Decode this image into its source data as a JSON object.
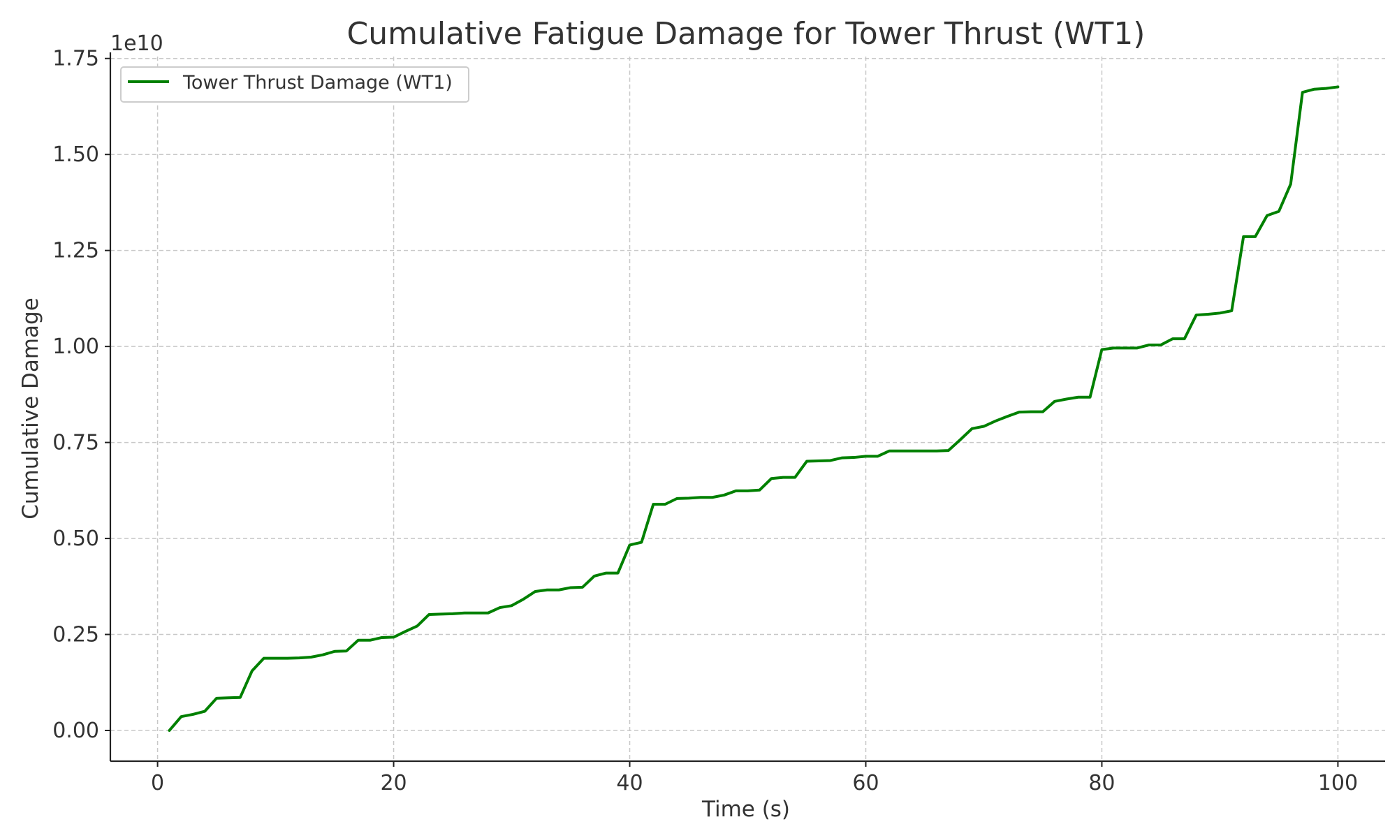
{
  "chart_data": {
    "type": "line",
    "title": "Cumulative Fatigue Damage for Tower Thrust (WT1)",
    "xlabel": "Time (s)",
    "ylabel": "Cumulative Damage",
    "y_offset_label": "1e10",
    "y_scale_factor": 10000000000,
    "xlim": [
      -4,
      104
    ],
    "ylim": [
      -0.08,
      1.755
    ],
    "x_ticks": [
      0,
      20,
      40,
      60,
      80,
      100
    ],
    "y_ticks": [
      0.0,
      0.25,
      0.5,
      0.75,
      1.0,
      1.25,
      1.5,
      1.75
    ],
    "x_tick_labels": [
      "0",
      "20",
      "40",
      "60",
      "80",
      "100"
    ],
    "y_tick_labels": [
      "0.00",
      "0.25",
      "0.50",
      "0.75",
      "1.00",
      "1.25",
      "1.50",
      "1.75"
    ],
    "grid": true,
    "legend_position": "top-left",
    "series": [
      {
        "name": "Tower Thrust Damage (WT1)",
        "color": "#008000",
        "x": [
          1,
          2,
          3,
          4,
          5,
          6,
          7,
          8,
          9,
          10,
          11,
          12,
          13,
          14,
          15,
          16,
          17,
          18,
          19,
          20,
          21,
          22,
          23,
          24,
          25,
          26,
          27,
          28,
          29,
          30,
          31,
          32,
          33,
          34,
          35,
          36,
          37,
          38,
          39,
          40,
          41,
          42,
          43,
          44,
          45,
          46,
          47,
          48,
          49,
          50,
          51,
          52,
          53,
          54,
          55,
          56,
          57,
          58,
          59,
          60,
          61,
          62,
          63,
          64,
          65,
          66,
          67,
          68,
          69,
          70,
          71,
          72,
          73,
          74,
          75,
          76,
          77,
          78,
          79,
          80,
          81,
          82,
          83,
          84,
          85,
          86,
          87,
          88,
          89,
          90,
          91,
          92,
          93,
          94,
          95,
          96,
          97,
          98,
          99,
          100
        ],
        "values": [
          0.0,
          0.036,
          0.042,
          0.05,
          0.084,
          0.085,
          0.086,
          0.155,
          0.188,
          0.188,
          0.188,
          0.189,
          0.191,
          0.197,
          0.206,
          0.207,
          0.235,
          0.235,
          0.242,
          0.243,
          0.258,
          0.272,
          0.302,
          0.303,
          0.304,
          0.306,
          0.306,
          0.306,
          0.32,
          0.325,
          0.342,
          0.362,
          0.366,
          0.366,
          0.372,
          0.373,
          0.402,
          0.41,
          0.41,
          0.483,
          0.49,
          0.589,
          0.589,
          0.604,
          0.605,
          0.607,
          0.607,
          0.613,
          0.624,
          0.624,
          0.626,
          0.656,
          0.659,
          0.659,
          0.701,
          0.702,
          0.703,
          0.71,
          0.711,
          0.714,
          0.714,
          0.728,
          0.728,
          0.728,
          0.728,
          0.728,
          0.729,
          0.757,
          0.786,
          0.792,
          0.806,
          0.818,
          0.829,
          0.83,
          0.83,
          0.857,
          0.863,
          0.868,
          0.868,
          0.992,
          0.996,
          0.996,
          0.996,
          1.004,
          1.004,
          1.02,
          1.02,
          1.082,
          1.084,
          1.087,
          1.093,
          1.286,
          1.286,
          1.341,
          1.352,
          1.423,
          1.662,
          1.67,
          1.672,
          1.676
        ]
      }
    ]
  }
}
